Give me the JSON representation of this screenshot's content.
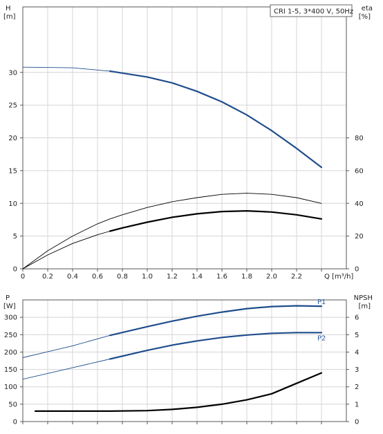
{
  "legend_text": "CRI 1-5, 3*400 V, 50Hz",
  "colors": {
    "grid": "#d4d4d4",
    "frame": "#555555",
    "blue": "#1e4d8c",
    "black": "#000000",
    "label_blue": "#2a5aa0"
  },
  "chart_data": [
    {
      "type": "line",
      "title": "",
      "x_unit_label": "Q [m³/h]",
      "xlim": [
        0,
        2.6
      ],
      "x_ticks": [
        0,
        0.2,
        0.4,
        0.6,
        0.8,
        1.0,
        1.2,
        1.4,
        1.6,
        1.8,
        2.0,
        2.2
      ],
      "x_tick_labels": [
        "0",
        "0.2",
        "0.4",
        "0.6",
        "0.8",
        "1.0",
        "1.2",
        "1.4",
        "1.6",
        "1.8",
        "2.0",
        "2.2"
      ],
      "left_axis": {
        "label_top": "H",
        "label_bottom": "[m]",
        "ylim": [
          0,
          40
        ],
        "ticks": [
          0,
          5,
          10,
          15,
          20,
          25,
          30
        ],
        "tick_labels": [
          "0",
          "5",
          "10",
          "15",
          "20",
          "25",
          "30"
        ]
      },
      "right_axis": {
        "label_top": "eta",
        "label_bottom": "[%]",
        "ylim": [
          0,
          160
        ],
        "ticks": [
          0,
          20,
          40,
          60,
          80
        ],
        "tick_labels": [
          "0",
          "20",
          "40",
          "60",
          "80"
        ]
      },
      "grid": true,
      "series": [
        {
          "axis": "left",
          "color": "blue",
          "x": [
            0,
            0.4,
            0.7,
            1.0,
            1.2,
            1.4,
            1.6,
            1.8,
            2.0,
            2.2,
            2.4
          ],
          "y": [
            30.8,
            30.7,
            30.2,
            29.3,
            28.4,
            27.1,
            25.5,
            23.5,
            21.1,
            18.4,
            15.5
          ],
          "thick_from": 0.7
        },
        {
          "axis": "right",
          "color": "black",
          "x": [
            0,
            0.2,
            0.4,
            0.6,
            0.7,
            0.8,
            1.0,
            1.2,
            1.4,
            1.6,
            1.8,
            2.0,
            2.2,
            2.4
          ],
          "y": [
            0,
            11,
            20,
            27.5,
            30.5,
            33,
            37.5,
            41,
            43.5,
            45.5,
            46.2,
            45.5,
            43.5,
            40
          ],
          "thick_from": null
        },
        {
          "axis": "right",
          "color": "black",
          "x": [
            0,
            0.2,
            0.4,
            0.6,
            0.7,
            0.8,
            1.0,
            1.2,
            1.4,
            1.6,
            1.8,
            2.0,
            2.2,
            2.4
          ],
          "y": [
            0,
            8.5,
            15.5,
            20.8,
            23,
            25,
            28.5,
            31.5,
            33.6,
            35,
            35.4,
            34.7,
            33,
            30.5
          ],
          "thick_from": 0.7
        }
      ]
    },
    {
      "type": "line",
      "title": "",
      "x_unit_label": "",
      "xlim": [
        0,
        2.6
      ],
      "x_ticks": [
        0,
        0.2,
        0.4,
        0.6,
        0.8,
        1.0,
        1.2,
        1.4,
        1.6,
        1.8,
        2.0,
        2.2
      ],
      "left_axis": {
        "label_top": "P",
        "label_bottom": "[W]",
        "ylim": [
          0,
          350
        ],
        "ticks": [
          0,
          50,
          100,
          150,
          200,
          250,
          300
        ],
        "tick_labels": [
          "0",
          "50",
          "100",
          "150",
          "200",
          "250",
          "300"
        ]
      },
      "right_axis": {
        "label_top": "NPSH",
        "label_bottom": "[m]",
        "ylim": [
          0,
          7
        ],
        "ticks": [
          0,
          1,
          2,
          3,
          4,
          5,
          6
        ],
        "tick_labels": [
          "0",
          "1",
          "2",
          "3",
          "4",
          "5",
          "6"
        ]
      },
      "grid": true,
      "series": [
        {
          "name": "P1",
          "axis": "left",
          "color": "blue",
          "x": [
            0,
            0.4,
            0.7,
            1.0,
            1.2,
            1.4,
            1.6,
            1.8,
            2.0,
            2.2,
            2.4
          ],
          "y": [
            184,
            218,
            248,
            273,
            289,
            303,
            315,
            325,
            331,
            333,
            332
          ],
          "thick_from": 0.7
        },
        {
          "name": "P2",
          "axis": "left",
          "color": "blue",
          "x": [
            0,
            0.4,
            0.7,
            1.0,
            1.2,
            1.4,
            1.6,
            1.8,
            2.0,
            2.2,
            2.4
          ],
          "y": [
            122,
            155,
            180,
            205,
            220,
            232,
            242,
            249,
            254,
            256,
            256
          ],
          "thick_from": 0.7
        },
        {
          "axis": "right",
          "color": "black",
          "x": [
            0.1,
            0.4,
            0.7,
            1.0,
            1.2,
            1.4,
            1.6,
            1.8,
            2.0,
            2.2,
            2.4
          ],
          "y": [
            0.6,
            0.6,
            0.6,
            0.63,
            0.7,
            0.82,
            1.0,
            1.25,
            1.6,
            2.2,
            2.8
          ],
          "thick_from": 0.1
        }
      ]
    }
  ]
}
